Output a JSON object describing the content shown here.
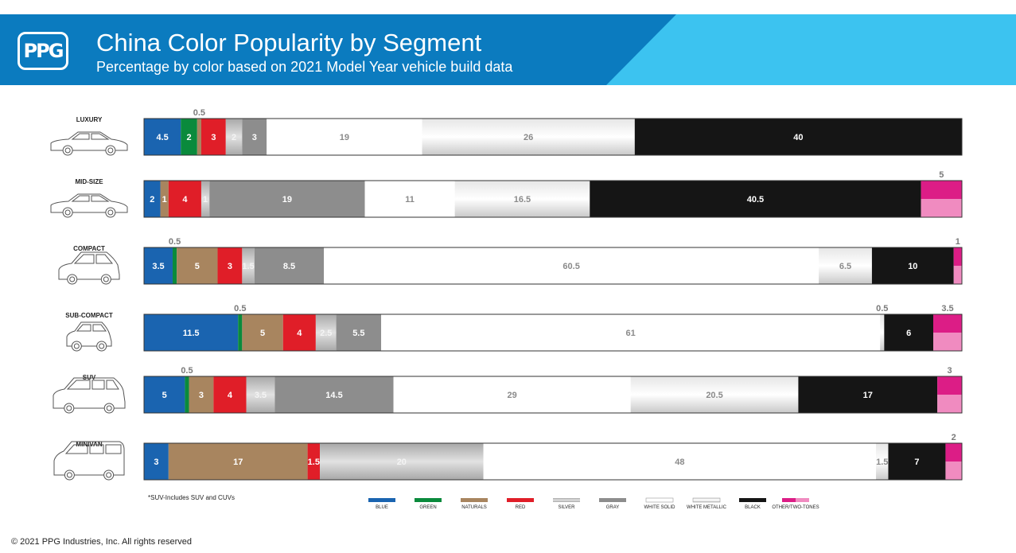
{
  "header": {
    "logo_text": "PPG",
    "title": "China Color Popularity by Segment",
    "subtitle": "Percentage by color based on 2021 Model Year vehicle build data"
  },
  "colors": {
    "blue": "#1a64b0",
    "green": "#0a8a3c",
    "naturals": "#a8855f",
    "red": "#e01e28",
    "silver": "#c4c4c4",
    "gray": "#8d8d8d",
    "white_solid": "#ffffff",
    "white_metallic": "#e4e4e4",
    "black": "#151515",
    "other_top": "#dc1d86",
    "other_bottom": "#f08bc0",
    "banner_dark": "#0b7bbf",
    "banner_light": "#3cc3f0"
  },
  "chart_data": {
    "type": "bar",
    "orientation": "horizontal",
    "stacked": true,
    "normalized": true,
    "legend_position": "bottom-center",
    "grid": false,
    "series": [
      {
        "name": "BLUE",
        "values": [
          4.5,
          2,
          3.5,
          11.5,
          5,
          3
        ]
      },
      {
        "name": "GREEN",
        "values": [
          2,
          0,
          0.5,
          0.5,
          0.5,
          0
        ]
      },
      {
        "name": "NATURALS",
        "values": [
          0.5,
          1,
          5,
          5,
          3,
          17
        ]
      },
      {
        "name": "RED",
        "values": [
          3,
          4,
          3,
          4,
          4,
          1.5
        ]
      },
      {
        "name": "SILVER",
        "values": [
          2,
          1,
          1.5,
          2.5,
          3.5,
          20
        ]
      },
      {
        "name": "GRAY",
        "values": [
          3,
          19,
          8.5,
          5.5,
          14.5,
          0
        ]
      },
      {
        "name": "WHITE SOLID",
        "values": [
          19,
          11,
          60.5,
          61,
          29,
          48
        ]
      },
      {
        "name": "WHITE METALLIC",
        "values": [
          26,
          16.5,
          6.5,
          0.5,
          20.5,
          1.5
        ]
      },
      {
        "name": "BLACK",
        "values": [
          40,
          40.5,
          10,
          6,
          17,
          7
        ]
      },
      {
        "name": "OTHER/TWO-TONES",
        "values": [
          0,
          5,
          1,
          3.5,
          3,
          2
        ]
      }
    ],
    "segments": [
      {
        "name": "LUXURY",
        "car": "sedan",
        "items": [
          {
            "c": "blue",
            "v": 4.5,
            "l": "4.5"
          },
          {
            "c": "green",
            "v": 2,
            "l": "2"
          },
          {
            "c": "naturals",
            "v": 0.5,
            "l": "0.5",
            "above": true
          },
          {
            "c": "red",
            "v": 3,
            "l": "3"
          },
          {
            "c": "silver",
            "v": 2,
            "l": "2"
          },
          {
            "c": "gray",
            "v": 3,
            "l": "3"
          },
          {
            "c": "white_solid",
            "v": 19,
            "l": "19"
          },
          {
            "c": "white_metallic",
            "v": 26,
            "l": "26"
          },
          {
            "c": "black",
            "v": 40,
            "l": "40"
          }
        ]
      },
      {
        "name": "MID-SIZE",
        "car": "sedan",
        "items": [
          {
            "c": "blue",
            "v": 2,
            "l": "2"
          },
          {
            "c": "naturals",
            "v": 1,
            "l": "1"
          },
          {
            "c": "red",
            "v": 4,
            "l": "4"
          },
          {
            "c": "silver",
            "v": 1,
            "l": "1"
          },
          {
            "c": "gray",
            "v": 19,
            "l": "19"
          },
          {
            "c": "white_solid",
            "v": 11,
            "l": "11"
          },
          {
            "c": "white_metallic",
            "v": 16.5,
            "l": "16.5"
          },
          {
            "c": "black",
            "v": 40.5,
            "l": "40.5"
          },
          {
            "c": "other",
            "v": 5,
            "l": "5",
            "above": true
          }
        ]
      },
      {
        "name": "COMPACT",
        "car": "hatch",
        "items": [
          {
            "c": "blue",
            "v": 3.5,
            "l": "3.5"
          },
          {
            "c": "green",
            "v": 0.5,
            "l": "0.5",
            "above": true
          },
          {
            "c": "naturals",
            "v": 5,
            "l": "5"
          },
          {
            "c": "red",
            "v": 3,
            "l": "3"
          },
          {
            "c": "silver",
            "v": 1.5,
            "l": "1.5"
          },
          {
            "c": "gray",
            "v": 8.5,
            "l": "8.5"
          },
          {
            "c": "white_solid",
            "v": 60.5,
            "l": "60.5"
          },
          {
            "c": "white_metallic",
            "v": 6.5,
            "l": "6.5"
          },
          {
            "c": "black",
            "v": 10,
            "l": "10"
          },
          {
            "c": "other",
            "v": 1,
            "l": "1",
            "above": true
          }
        ]
      },
      {
        "name": "SUB-COMPACT",
        "car": "mini",
        "items": [
          {
            "c": "blue",
            "v": 11.5,
            "l": "11.5"
          },
          {
            "c": "green",
            "v": 0.5,
            "l": "0.5",
            "above": true
          },
          {
            "c": "naturals",
            "v": 5,
            "l": "5"
          },
          {
            "c": "red",
            "v": 4,
            "l": "4"
          },
          {
            "c": "silver",
            "v": 2.5,
            "l": "2.5"
          },
          {
            "c": "gray",
            "v": 5.5,
            "l": "5.5"
          },
          {
            "c": "white_solid",
            "v": 61,
            "l": "61"
          },
          {
            "c": "white_metallic",
            "v": 0.5,
            "l": "0.5",
            "above": true
          },
          {
            "c": "black",
            "v": 6,
            "l": "6"
          },
          {
            "c": "other",
            "v": 3.5,
            "l": "3.5",
            "above": true
          }
        ]
      },
      {
        "name": "SUV",
        "car": "suv",
        "items": [
          {
            "c": "blue",
            "v": 5,
            "l": "5"
          },
          {
            "c": "green",
            "v": 0.5,
            "l": "0.5",
            "above": true
          },
          {
            "c": "naturals",
            "v": 3,
            "l": "3"
          },
          {
            "c": "red",
            "v": 4,
            "l": "4"
          },
          {
            "c": "silver",
            "v": 3.5,
            "l": "3.5"
          },
          {
            "c": "gray",
            "v": 14.5,
            "l": "14.5"
          },
          {
            "c": "white_solid",
            "v": 29,
            "l": "29"
          },
          {
            "c": "white_metallic",
            "v": 20.5,
            "l": "20.5"
          },
          {
            "c": "black",
            "v": 17,
            "l": "17"
          },
          {
            "c": "other",
            "v": 3,
            "l": "3",
            "above": true
          }
        ]
      },
      {
        "name": "MINIVAN",
        "car": "van",
        "items": [
          {
            "c": "blue",
            "v": 3,
            "l": "3"
          },
          {
            "c": "naturals",
            "v": 17,
            "l": "17"
          },
          {
            "c": "red",
            "v": 1.5,
            "l": "1.5"
          },
          {
            "c": "silver",
            "v": 20,
            "l": "20"
          },
          {
            "c": "white_solid",
            "v": 48,
            "l": "48"
          },
          {
            "c": "white_metallic",
            "v": 1.5,
            "l": "1.5"
          },
          {
            "c": "black",
            "v": 7,
            "l": "7"
          },
          {
            "c": "other",
            "v": 2,
            "l": "2",
            "above": true
          }
        ]
      }
    ],
    "legend": [
      {
        "c": "blue",
        "label": "BLUE"
      },
      {
        "c": "green",
        "label": "GREEN"
      },
      {
        "c": "naturals",
        "label": "NATURALS"
      },
      {
        "c": "red",
        "label": "RED"
      },
      {
        "c": "silver",
        "label": "SILVER"
      },
      {
        "c": "gray",
        "label": "GRAY"
      },
      {
        "c": "white_solid",
        "label": "WHITE SOLID"
      },
      {
        "c": "white_metallic",
        "label": "WHITE METALLIC"
      },
      {
        "c": "black",
        "label": "BLACK"
      },
      {
        "c": "other",
        "label": "OTHER/TWO-TONES"
      }
    ]
  },
  "footnote": "*SUV-Includes SUV and CUVs",
  "copyright": "© 2021 PPG Industries, Inc. All rights reserved"
}
